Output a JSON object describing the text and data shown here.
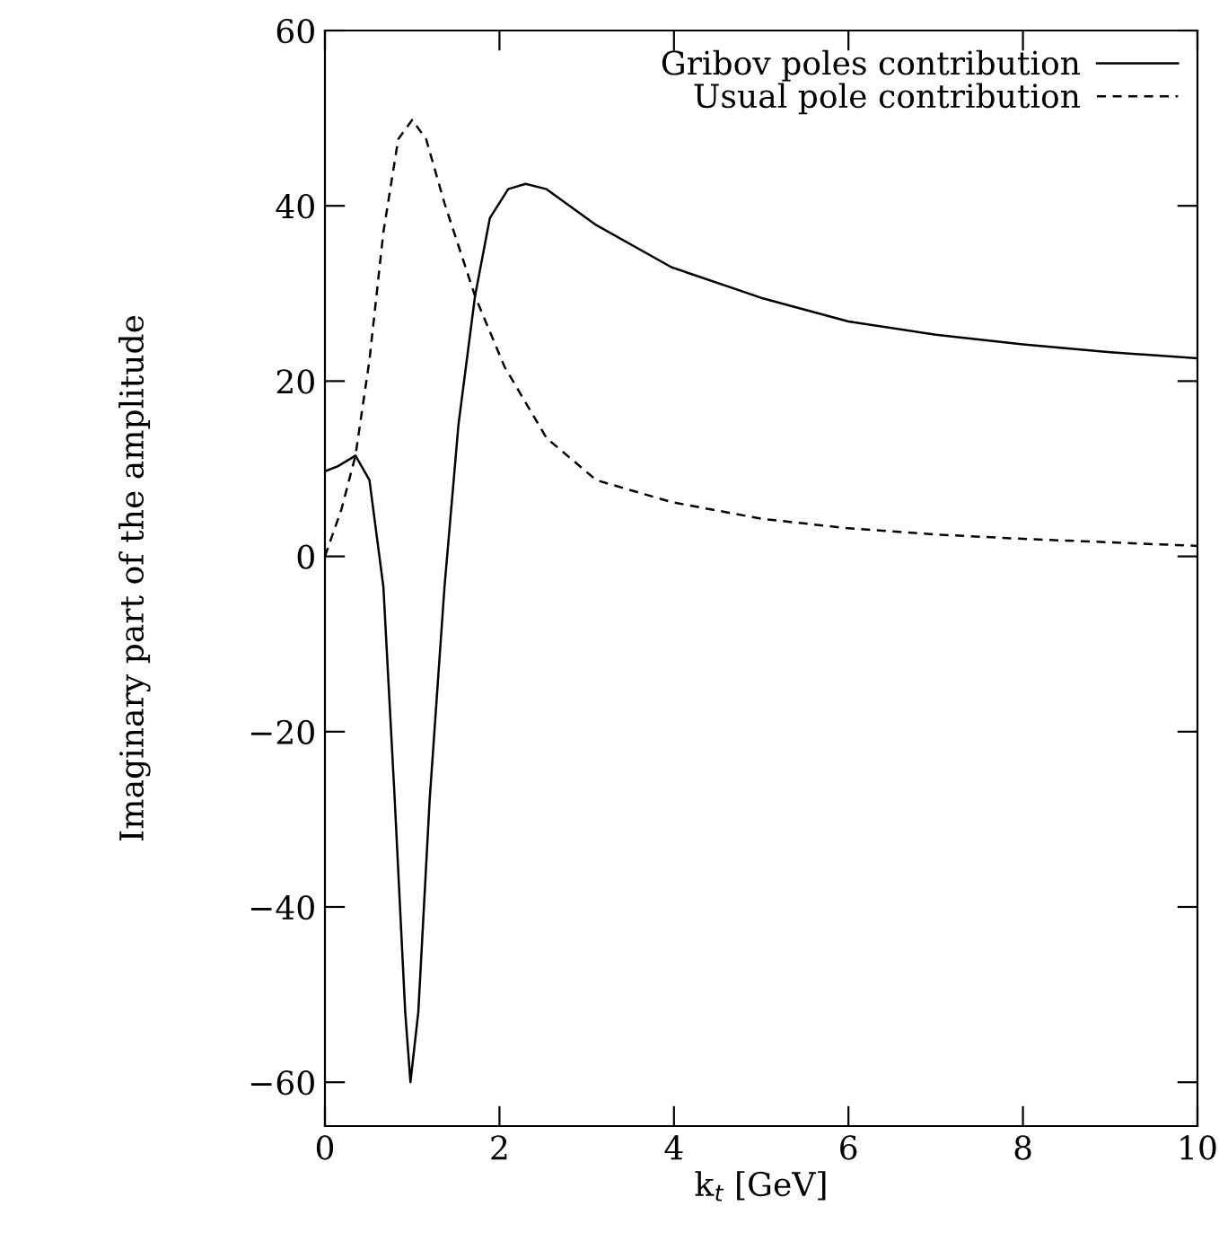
{
  "chart_data": {
    "type": "line",
    "xlabel": "k$_{t}$ [GeV]",
    "ylabel": "Imaginary part of the amplitude",
    "xlim": [
      0,
      10
    ],
    "ylim": [
      -65,
      60
    ],
    "xticks": [
      0,
      2,
      4,
      6,
      8,
      10
    ],
    "yticks": [
      -60,
      -40,
      -20,
      0,
      20,
      40,
      60
    ],
    "grid": false,
    "legend": "top right",
    "series": [
      {
        "name": "Gribov poles contribution",
        "color": "#000000",
        "line_style": "solid",
        "x": [
          0,
          0.15,
          0.35,
          0.51,
          0.67,
          0.8,
          0.92,
          0.98,
          1.07,
          1.2,
          1.37,
          1.53,
          1.72,
          1.89,
          2.1,
          2.3,
          2.54,
          3.11,
          3.97,
          5,
          6,
          7,
          8,
          9,
          10
        ],
        "values": [
          9.7,
          10.3,
          11.5,
          8.7,
          -3.5,
          -27.8,
          -52,
          -60,
          -52,
          -27.8,
          -3.5,
          15,
          29.7,
          38.6,
          41.9,
          42.5,
          41.9,
          37.8,
          33,
          29.5,
          26.8,
          25.3,
          24.2,
          23.3,
          22.6
        ]
      },
      {
        "name": "Usual pole contribution",
        "color": "#000000",
        "line_style": "dashed",
        "x": [
          0,
          0.19,
          0.35,
          0.51,
          0.67,
          0.84,
          1.0,
          1.16,
          1.37,
          1.72,
          2.06,
          2.54,
          3.11,
          3.97,
          5,
          6,
          7,
          8,
          9,
          10
        ],
        "values": [
          0,
          5.4,
          11.5,
          22.4,
          37,
          47.6,
          49.8,
          47.6,
          40.3,
          29.7,
          21.6,
          13.5,
          8.7,
          6.2,
          4.3,
          3.2,
          2.5,
          2,
          1.6,
          1.2
        ]
      }
    ]
  }
}
